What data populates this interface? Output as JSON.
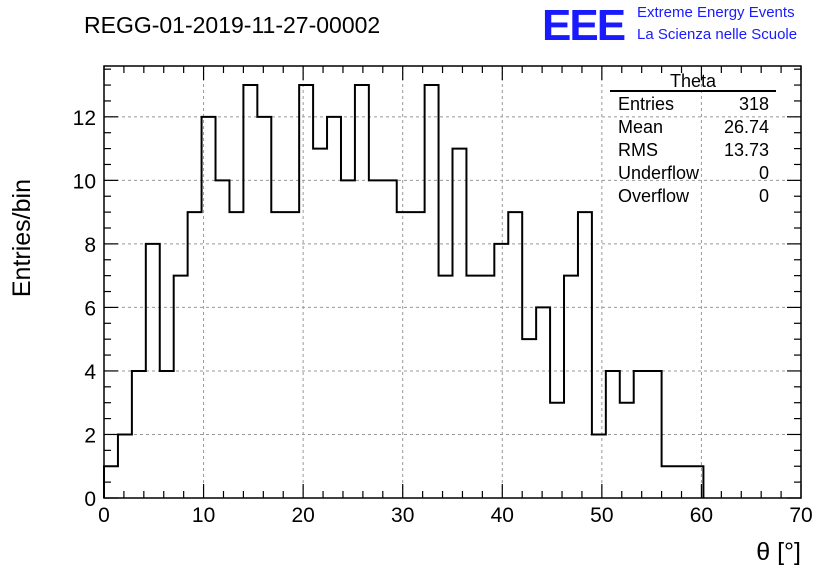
{
  "chart_data": {
    "type": "histogram",
    "title": "REGG-01-2019-11-27-00002",
    "xlabel": "θ [°]",
    "ylabel": "Entries/bin",
    "xlim": [
      0,
      70
    ],
    "ylim": [
      0,
      13.6
    ],
    "grid": true,
    "x_ticks": [
      "0",
      "10",
      "20",
      "30",
      "40",
      "50",
      "60",
      "70"
    ],
    "y_ticks": [
      "0",
      "2",
      "4",
      "6",
      "8",
      "10",
      "12"
    ],
    "bin_width": 1.4,
    "values": [
      1,
      2,
      4,
      8,
      4,
      7,
      9,
      12,
      10,
      9,
      13,
      12,
      9,
      9,
      13,
      11,
      12,
      10,
      13,
      10,
      10,
      9,
      9,
      13,
      7,
      11,
      7,
      7,
      8,
      9,
      5,
      6,
      3,
      7,
      9,
      2,
      4,
      3,
      4,
      4,
      1,
      1,
      1
    ],
    "stats": {
      "name": "Theta",
      "rows": [
        {
          "label": "Entries",
          "value": "318"
        },
        {
          "label": "Mean",
          "value": "26.74"
        },
        {
          "label": "RMS",
          "value": "13.73"
        },
        {
          "label": "Underflow",
          "value": "0"
        },
        {
          "label": "Overflow",
          "value": "0"
        }
      ]
    },
    "logo": {
      "mark": "EEE",
      "line1": "Extreme Energy Events",
      "line2": "La Scienza nelle Scuole",
      "color": "#1a1aff"
    }
  }
}
